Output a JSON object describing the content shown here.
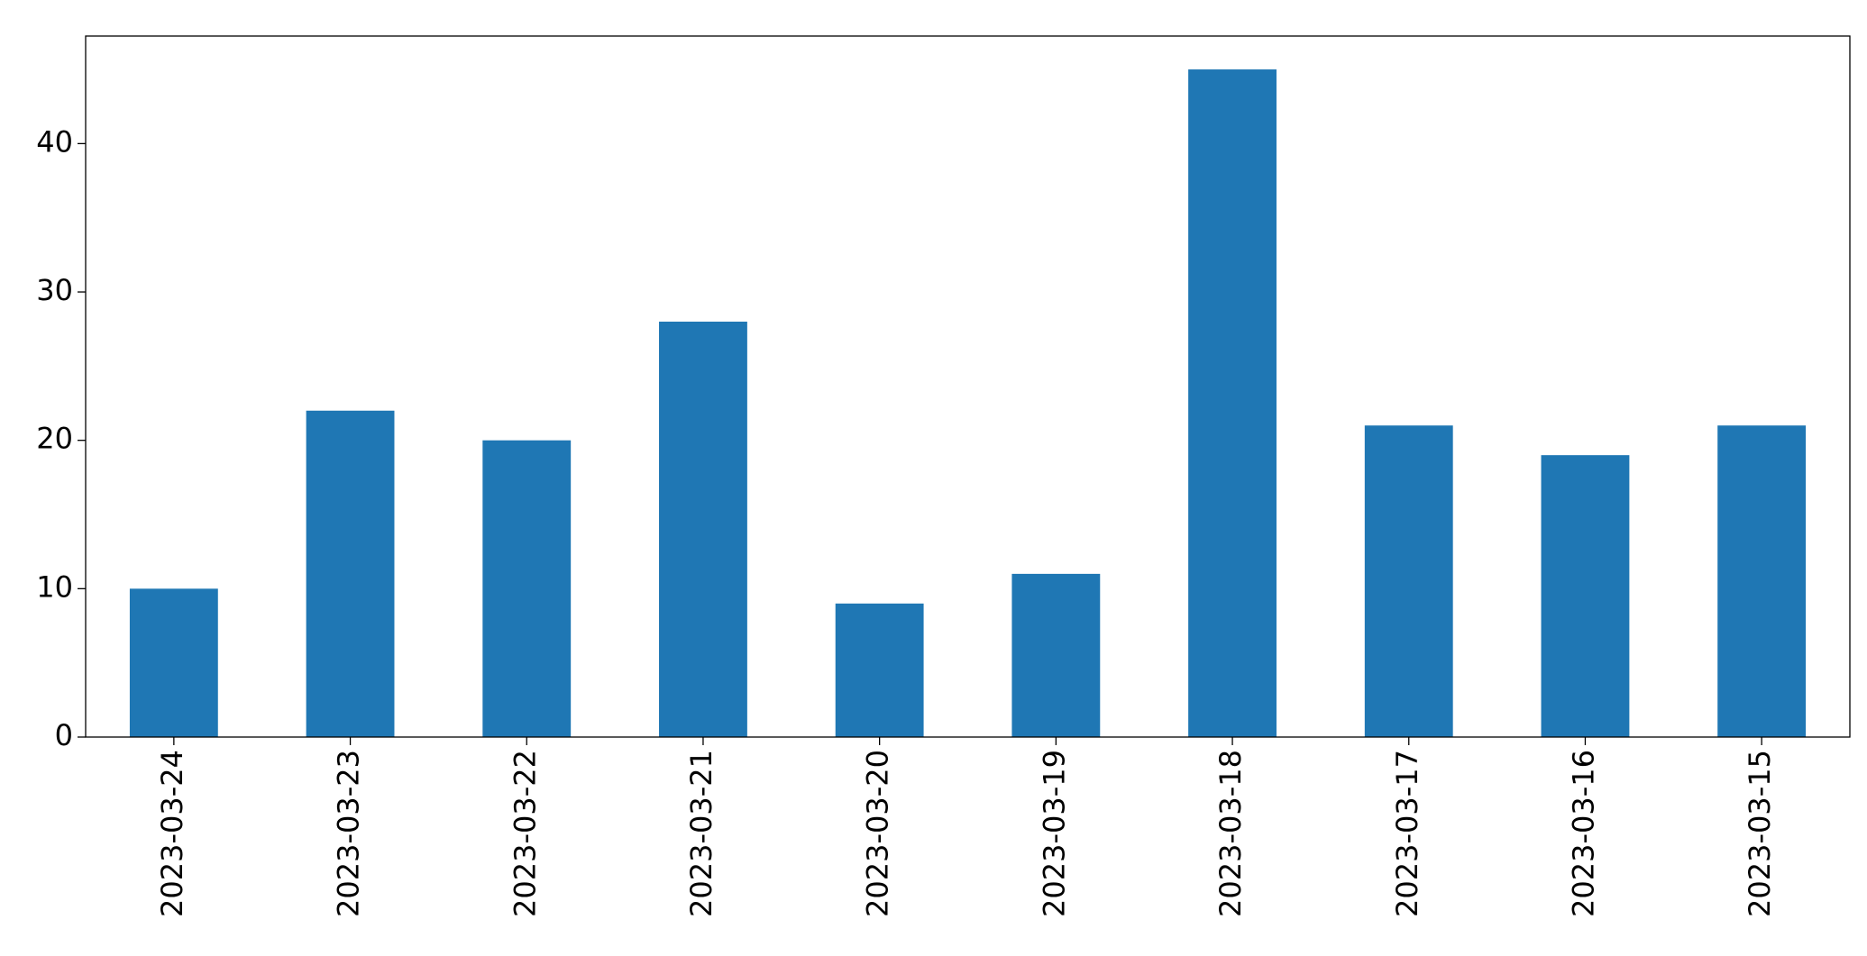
{
  "chart_data": {
    "type": "bar",
    "categories": [
      "2023-03-24",
      "2023-03-23",
      "2023-03-22",
      "2023-03-21",
      "2023-03-20",
      "2023-03-19",
      "2023-03-18",
      "2023-03-17",
      "2023-03-16",
      "2023-03-15"
    ],
    "values": [
      10,
      22,
      20,
      28,
      9,
      11,
      45,
      21,
      19,
      21
    ],
    "color": "#1f77b4",
    "ylim": [
      0,
      47.25
    ],
    "yticks": [
      0,
      10,
      20,
      30,
      40
    ],
    "grid": false
  }
}
